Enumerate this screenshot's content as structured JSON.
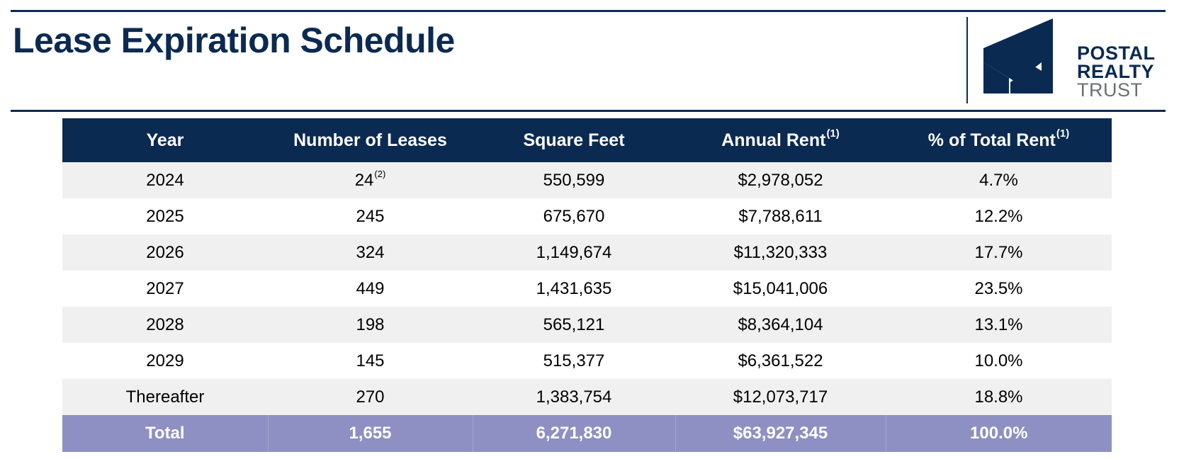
{
  "header": {
    "title": "Lease Expiration Schedule",
    "title_color": "#0b2a52"
  },
  "logo": {
    "line1": "POSTAL",
    "line2": "REALTY",
    "line3": "TRUST",
    "navy": "#0b2a52",
    "gray": "#6d6f72"
  },
  "table": {
    "columns": [
      {
        "label": "Year",
        "footnote": ""
      },
      {
        "label": "Number of Leases",
        "footnote": ""
      },
      {
        "label": "Square Feet",
        "footnote": ""
      },
      {
        "label": "Annual Rent",
        "footnote": "(1)"
      },
      {
        "label": "% of Total Rent",
        "footnote": "(1)"
      }
    ],
    "rows": [
      {
        "year": "2024",
        "leases": "24",
        "leases_footnote": "(2)",
        "sqft": "550,599",
        "rent": "$2,978,052",
        "pct": "4.7%"
      },
      {
        "year": "2025",
        "leases": "245",
        "leases_footnote": "",
        "sqft": "675,670",
        "rent": "$7,788,611",
        "pct": "12.2%"
      },
      {
        "year": "2026",
        "leases": "324",
        "leases_footnote": "",
        "sqft": "1,149,674",
        "rent": "$11,320,333",
        "pct": "17.7%"
      },
      {
        "year": "2027",
        "leases": "449",
        "leases_footnote": "",
        "sqft": "1,431,635",
        "rent": "$15,041,006",
        "pct": "23.5%"
      },
      {
        "year": "2028",
        "leases": "198",
        "leases_footnote": "",
        "sqft": "565,121",
        "rent": "$8,364,104",
        "pct": "13.1%"
      },
      {
        "year": "2029",
        "leases": "145",
        "leases_footnote": "",
        "sqft": "515,377",
        "rent": "$6,361,522",
        "pct": "10.0%"
      },
      {
        "year": "Thereafter",
        "leases": "270",
        "leases_footnote": "",
        "sqft": "1,383,754",
        "rent": "$12,073,717",
        "pct": "18.8%"
      }
    ],
    "total": {
      "label": "Total",
      "leases": "1,655",
      "sqft": "6,271,830",
      "rent": "$63,927,345",
      "pct": "100.0%"
    },
    "header_color": "#0b2a52",
    "total_color": "#8e8fc2",
    "shaded_row_color": "#f0f0f0"
  }
}
